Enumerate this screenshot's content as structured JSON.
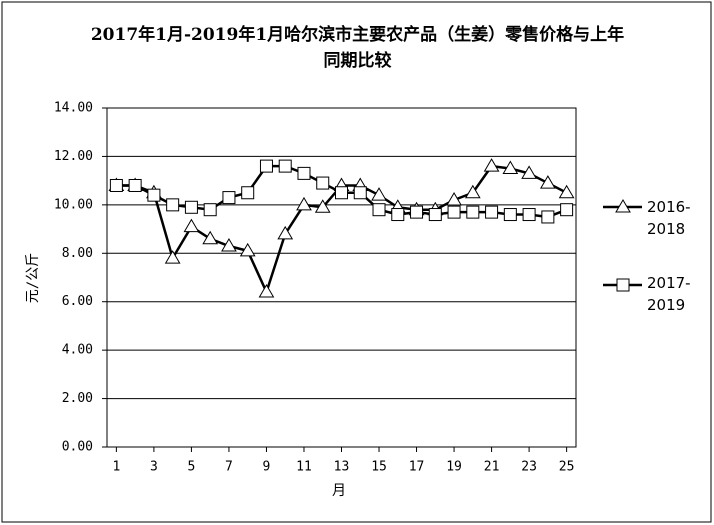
{
  "chart_data": {
    "type": "line",
    "title": "2017年1月-2019年1月哈尔滨市主要农产品（生姜）零售价格与上年同期比较",
    "x_label": "月",
    "y_label": "元/公斤",
    "x": [
      1,
      2,
      3,
      4,
      5,
      6,
      7,
      8,
      9,
      10,
      11,
      12,
      13,
      14,
      15,
      16,
      17,
      18,
      19,
      20,
      21,
      22,
      23,
      24,
      25
    ],
    "xlim": [
      0.5,
      25.5
    ],
    "xticks": [
      1,
      3,
      5,
      7,
      9,
      11,
      13,
      15,
      17,
      19,
      21,
      23,
      25
    ],
    "ylim": [
      0,
      14
    ],
    "yticks": [
      {
        "value": 0,
        "label": "0.00"
      },
      {
        "value": 2,
        "label": "2.00"
      },
      {
        "value": 4,
        "label": "4.00"
      },
      {
        "value": 6,
        "label": "6.00"
      },
      {
        "value": 8,
        "label": "8.00"
      },
      {
        "value": 10,
        "label": "10.00"
      },
      {
        "value": 12,
        "label": "12.00"
      },
      {
        "value": 14,
        "label": "14.00"
      }
    ],
    "grid": true,
    "series": [
      {
        "name": "2016-2018",
        "color": "#000000",
        "marker": "triangle",
        "values": [
          10.8,
          10.8,
          10.5,
          7.8,
          9.1,
          8.6,
          8.3,
          8.1,
          6.4,
          8.8,
          10.0,
          9.9,
          10.8,
          10.8,
          10.4,
          9.9,
          9.8,
          9.8,
          10.2,
          10.5,
          11.6,
          11.5,
          11.3,
          10.9,
          10.5
        ]
      },
      {
        "name": "2017-2019",
        "color": "#000000",
        "marker": "square",
        "values": [
          10.8,
          10.8,
          10.4,
          10.0,
          9.9,
          9.8,
          10.3,
          10.5,
          11.6,
          11.6,
          11.3,
          10.9,
          10.5,
          10.5,
          9.8,
          9.6,
          9.7,
          9.6,
          9.7,
          9.7,
          9.7,
          9.6,
          9.6,
          9.5,
          9.8
        ]
      }
    ]
  }
}
